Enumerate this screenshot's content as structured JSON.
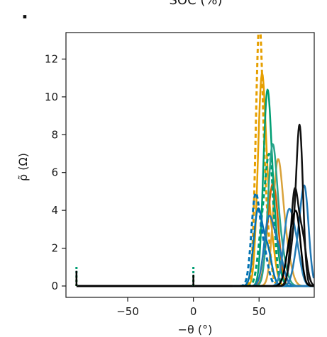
{
  "chart_data": {
    "type": "line",
    "title": "SOC (%)",
    "panel_mark": ".",
    "xlabel": "−θ (°)",
    "ylabel": "ρ̃ (Ω)",
    "xlim": [
      -97,
      92
    ],
    "ylim": [
      -0.6,
      13.4
    ],
    "xticks": [
      -50,
      0,
      50
    ],
    "yticks": [
      0,
      2,
      4,
      6,
      8,
      10,
      12
    ],
    "grid": false,
    "series": [
      {
        "color": "#e69f00",
        "dash": "6,4",
        "width": 3,
        "spikes": [
          {
            "left_end": -89,
            "h": 0.5
          },
          {
            "left_end": 0,
            "h": 0.55
          }
        ],
        "peaks": [
          {
            "mu": 50,
            "sigma": 2.6,
            "a": 13.0
          },
          {
            "mu": 55,
            "sigma": 3.0,
            "a": 3.5
          }
        ]
      },
      {
        "color": "#e69f00",
        "dash": "",
        "width": 2.5,
        "peaks": [
          {
            "mu": 52,
            "sigma": 3.0,
            "a": 10.5
          },
          {
            "mu": 58,
            "sigma": 3.5,
            "a": 3.0
          }
        ]
      },
      {
        "color": "#d55e00",
        "dash": "",
        "width": 2.5,
        "peaks": [
          {
            "mu": 59,
            "sigma": 3.5,
            "a": 4.0
          },
          {
            "mu": 63,
            "sigma": 3.0,
            "a": 2.5
          }
        ]
      },
      {
        "color": "#d9a23a",
        "dash": "",
        "width": 2.5,
        "peaks": [
          {
            "mu": 64,
            "sigma": 3.5,
            "a": 6.0
          },
          {
            "mu": 70,
            "sigma": 4.0,
            "a": 2.0
          }
        ]
      },
      {
        "color": "#009e73",
        "dash": "",
        "width": 2.5,
        "peaks": [
          {
            "mu": 56,
            "sigma": 3.0,
            "a": 9.2
          },
          {
            "mu": 61,
            "sigma": 3.5,
            "a": 3.0
          }
        ]
      },
      {
        "color": "#009e73",
        "dash": "6,4",
        "width": 3,
        "spikes": [
          {
            "left_end": -89,
            "h": 1.1
          },
          {
            "left_end": 0,
            "h": 1.05
          }
        ],
        "peaks": [
          {
            "mu": 58,
            "sigma": 3.2,
            "a": 6.6
          },
          {
            "mu": 52,
            "sigma": 3.0,
            "a": 2.5
          }
        ]
      },
      {
        "color": "#2aa58c",
        "dash": "",
        "width": 2.5,
        "peaks": [
          {
            "mu": 60,
            "sigma": 3.4,
            "a": 6.8
          },
          {
            "mu": 66,
            "sigma": 4.0,
            "a": 2.0
          }
        ]
      },
      {
        "color": "#0072b2",
        "dash": "6,4",
        "width": 3,
        "peaks": [
          {
            "mu": 47,
            "sigma": 3.0,
            "a": 4.4
          },
          {
            "mu": 53,
            "sigma": 3.5,
            "a": 2.0
          }
        ]
      },
      {
        "color": "#0072b2",
        "dash": "",
        "width": 2.5,
        "peaks": [
          {
            "mu": 49,
            "sigma": 3.2,
            "a": 3.8
          },
          {
            "mu": 56,
            "sigma": 3.5,
            "a": 2.0
          }
        ]
      },
      {
        "color": "#1f77b4",
        "dash": "",
        "width": 2.5,
        "peaks": [
          {
            "mu": 57,
            "sigma": 3.5,
            "a": 3.2
          },
          {
            "mu": 64,
            "sigma": 4.0,
            "a": 2.0
          }
        ]
      },
      {
        "color": "#1f77b4",
        "dash": "",
        "width": 2.5,
        "peaks": [
          {
            "mu": 85,
            "sigma": 3.0,
            "a": 4.5
          },
          {
            "mu": 80,
            "sigma": 3.5,
            "a": 2.0
          }
        ]
      },
      {
        "color": "#2b83ba",
        "dash": "",
        "width": 2.5,
        "peaks": [
          {
            "mu": 72,
            "sigma": 3.5,
            "a": 3.5
          },
          {
            "mu": 78,
            "sigma": 3.5,
            "a": 2.0
          }
        ]
      },
      {
        "color": "#111111",
        "dash": "",
        "width": 2.5,
        "peaks": [
          {
            "mu": 81,
            "sigma": 2.5,
            "a": 8.0
          },
          {
            "mu": 76,
            "sigma": 3.0,
            "a": 2.0
          }
        ]
      },
      {
        "color": "#111111",
        "dash": "",
        "width": 2.5,
        "peaks": [
          {
            "mu": 77,
            "sigma": 2.8,
            "a": 4.8
          },
          {
            "mu": 83,
            "sigma": 3.0,
            "a": 2.5
          }
        ]
      },
      {
        "color": "#000000",
        "dash": "",
        "width": 2.5,
        "spikes": [
          {
            "left_end": -89,
            "h": 0.8
          },
          {
            "left_end": 0,
            "h": 0.6
          }
        ],
        "peaks": [
          {
            "mu": 74,
            "sigma": 3.5,
            "a": 2.2
          },
          {
            "mu": 79,
            "sigma": 3.0,
            "a": 3.0
          }
        ]
      }
    ]
  }
}
